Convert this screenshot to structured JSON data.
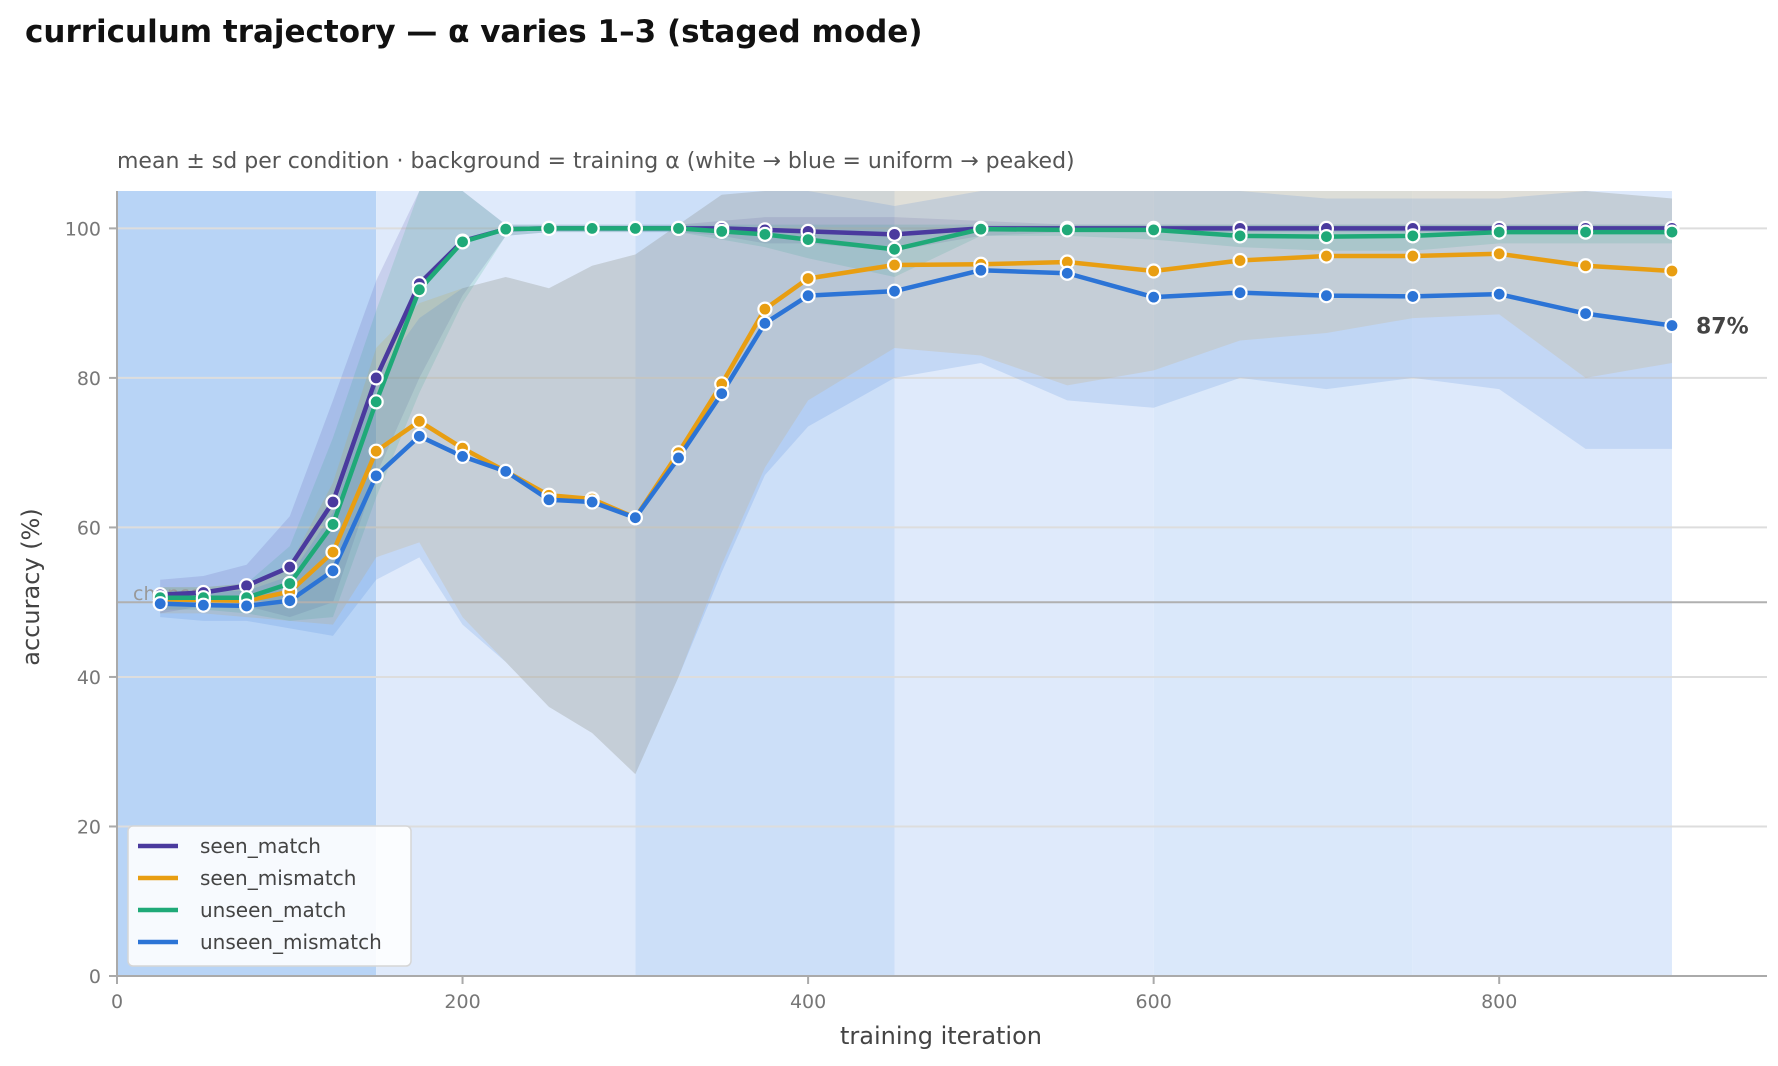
{
  "title": "curriculum trajectory — α varies 1–3 (staged mode)",
  "subtitle": "mean ± sd per condition · background = training α (white → blue = uniform → peaked)",
  "colors": {
    "seen_match": "#4a3a9e",
    "seen_mismatch": "#e89e12",
    "unseen_match": "#1fa978",
    "unseen_mismatch": "#2c74d6",
    "chance_line": "#b0b0b0",
    "grid": "#dddddd",
    "axis": "#aaaaaa"
  },
  "chart_data": {
    "type": "line",
    "xlabel": "training iteration",
    "ylabel": "accuracy (%)",
    "xlim": [
      0,
      955
    ],
    "ylim": [
      0,
      105
    ],
    "xticks": [
      0,
      200,
      400,
      600,
      800
    ],
    "yticks": [
      0,
      20,
      40,
      60,
      80,
      100
    ],
    "grid": "horizontal",
    "legend_position": "lower-left",
    "chance": {
      "label": "chance",
      "value": 50
    },
    "end_label": "87%",
    "background_bands": [
      {
        "x0": 0,
        "x1": 150,
        "level": 1.0
      },
      {
        "x0": 150,
        "x1": 300,
        "level": 0.2
      },
      {
        "x0": 300,
        "x1": 450,
        "level": 0.6
      },
      {
        "x0": 450,
        "x1": 600,
        "level": 0.2
      },
      {
        "x0": 600,
        "x1": 750,
        "level": 0.3
      },
      {
        "x0": 750,
        "x1": 900,
        "level": 0.25
      }
    ],
    "x": [
      25,
      50,
      75,
      100,
      125,
      150,
      175,
      200,
      225,
      250,
      275,
      300,
      325,
      350,
      375,
      400,
      450,
      500,
      550,
      600,
      650,
      700,
      750,
      800,
      850,
      900
    ],
    "series": [
      {
        "name": "seen_match",
        "values": [
          51.0,
          51.3,
          52.2,
          54.7,
          63.4,
          80.0,
          92.6,
          98.3,
          99.9,
          100,
          100,
          100,
          100,
          100,
          99.8,
          99.6,
          99.2,
          100,
          100,
          100,
          100,
          100,
          100,
          100,
          100,
          100
        ],
        "lower": [
          48.5,
          49.5,
          49.5,
          48.0,
          50.0,
          67.0,
          80.0,
          91.0,
          99.0,
          99.5,
          99.5,
          99.5,
          99.5,
          99.0,
          98.0,
          98.0,
          97.0,
          99.0,
          99.5,
          99.5,
          99.5,
          99.5,
          99.5,
          99.5,
          99.5,
          99.5
        ],
        "upper": [
          53.0,
          53.5,
          55.0,
          61.5,
          77.0,
          93.0,
          105,
          105,
          100.5,
          100.5,
          100.5,
          100.5,
          100.5,
          101,
          101.5,
          101.5,
          101.5,
          101,
          100.5,
          100.5,
          100.5,
          100.5,
          100.5,
          100.5,
          100.5,
          100.5
        ]
      },
      {
        "name": "seen_mismatch",
        "values": [
          50.4,
          50.3,
          50.2,
          51.4,
          56.7,
          70.2,
          74.2,
          70.6,
          67.5,
          64.3,
          63.8,
          61.3,
          70.0,
          79.2,
          89.2,
          93.3,
          95.1,
          95.2,
          95.5,
          94.3,
          95.7,
          96.3,
          96.3,
          96.6,
          95.0,
          94.3
        ],
        "lower": [
          48.5,
          48.5,
          48.0,
          47.5,
          47.0,
          56.0,
          58.0,
          48.0,
          42.0,
          36.0,
          32.5,
          27.0,
          40.0,
          55.0,
          68.0,
          77.0,
          84.0,
          83.0,
          79.0,
          81.0,
          85.0,
          86.0,
          88.0,
          88.5,
          80.0,
          82.0
        ],
        "upper": [
          52.0,
          52.0,
          52.5,
          55.0,
          66.0,
          84.0,
          90.0,
          92.0,
          93.5,
          92.0,
          95.0,
          96.5,
          100.5,
          104.5,
          105,
          105,
          105,
          105,
          105,
          105,
          105,
          105,
          105,
          105,
          105,
          104
        ]
      },
      {
        "name": "unseen_match",
        "values": [
          50.6,
          50.6,
          50.6,
          52.5,
          60.4,
          76.8,
          91.8,
          98.2,
          99.9,
          100,
          100,
          100,
          100,
          99.6,
          99.2,
          98.5,
          97.2,
          99.9,
          99.8,
          99.8,
          99.0,
          98.9,
          99.0,
          99.5,
          99.5,
          99.5
        ],
        "lower": [
          49.0,
          49.0,
          48.5,
          47.5,
          48.0,
          64.0,
          78.0,
          90.0,
          99.0,
          99.5,
          99.5,
          99.5,
          99.5,
          98.5,
          97.5,
          96.0,
          93.5,
          99.0,
          99.0,
          98.5,
          97.5,
          97.0,
          97.0,
          98.0,
          98.0,
          98.0
        ],
        "upper": [
          52.0,
          52.0,
          52.5,
          57.5,
          72.0,
          89.0,
          105,
          105,
          100.5,
          100.5,
          100.5,
          100.5,
          100.5,
          100.5,
          100.5,
          100.5,
          100.5,
          100.5,
          100.5,
          100.5,
          100.5,
          100.5,
          100.5,
          100.5,
          100.5,
          100.5
        ]
      },
      {
        "name": "unseen_mismatch",
        "values": [
          49.8,
          49.6,
          49.5,
          50.2,
          54.2,
          66.9,
          72.2,
          69.5,
          67.5,
          63.7,
          63.4,
          61.3,
          69.3,
          77.9,
          87.3,
          91.0,
          91.6,
          94.4,
          94.0,
          90.8,
          91.4,
          91.0,
          90.9,
          91.2,
          88.6,
          87.0
        ],
        "lower": [
          48.0,
          47.5,
          47.5,
          46.5,
          45.5,
          53.0,
          56.0,
          47.0,
          42.0,
          36.0,
          32.5,
          27.0,
          40.0,
          54.0,
          67.0,
          73.5,
          80.0,
          82.0,
          77.0,
          76.0,
          80.0,
          78.5,
          80.0,
          78.5,
          70.5,
          70.5
        ],
        "upper": [
          51.5,
          51.5,
          51.5,
          53.5,
          62.0,
          80.0,
          88.0,
          92.0,
          93.5,
          92.0,
          95.0,
          96.5,
          100.5,
          104.5,
          105,
          105,
          103,
          106,
          106,
          106,
          105,
          104,
          104,
          104,
          106,
          104
        ]
      }
    ]
  }
}
